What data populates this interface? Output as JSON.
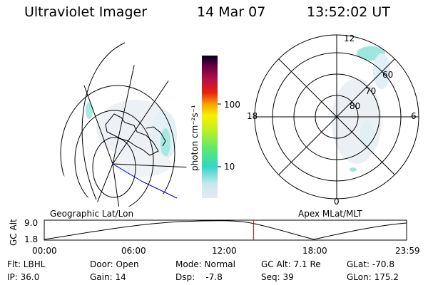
{
  "header": {
    "title": "Ultraviolet Imager",
    "date": "14 Mar 07",
    "time": "13:52:02 UT"
  },
  "colorbar": {
    "unit_label": "photon cm⁻²s⁻¹",
    "ticks": [
      "100",
      "10"
    ]
  },
  "polar": {
    "mlt_labels": {
      "top": "12",
      "bottom": "0",
      "left": "18",
      "right": "6"
    },
    "lat_labels": [
      "60",
      "70",
      "80"
    ]
  },
  "timeline": {
    "left_title": "Geographic Lat/Lon",
    "right_title": "Apex MLat/MLT",
    "y_label": "GC Alt",
    "y_ticks": [
      "9.0",
      "1.8"
    ],
    "x_ticks": [
      "00:00",
      "06:00",
      "12:00",
      "18:00",
      "23:59"
    ],
    "marker_time_hours": 13.87
  },
  "info": {
    "row1": {
      "flt": "Flt: LBHL",
      "door": "Door: Open",
      "mode": "Mode: Normal",
      "gcalt": "GC Alt: 7.1 Re",
      "glat": "GLat: -70.8"
    },
    "row2": {
      "ip": "IP: 36.0",
      "gain": "Gain: 14",
      "dsp": "Dsp:    -7.8",
      "seq": "Seq: 39",
      "glon": "GLon: 175.2"
    }
  },
  "colors": {
    "marker": "#ff0000",
    "aurora": "#4fd8c8",
    "trace": "#0000cc"
  }
}
